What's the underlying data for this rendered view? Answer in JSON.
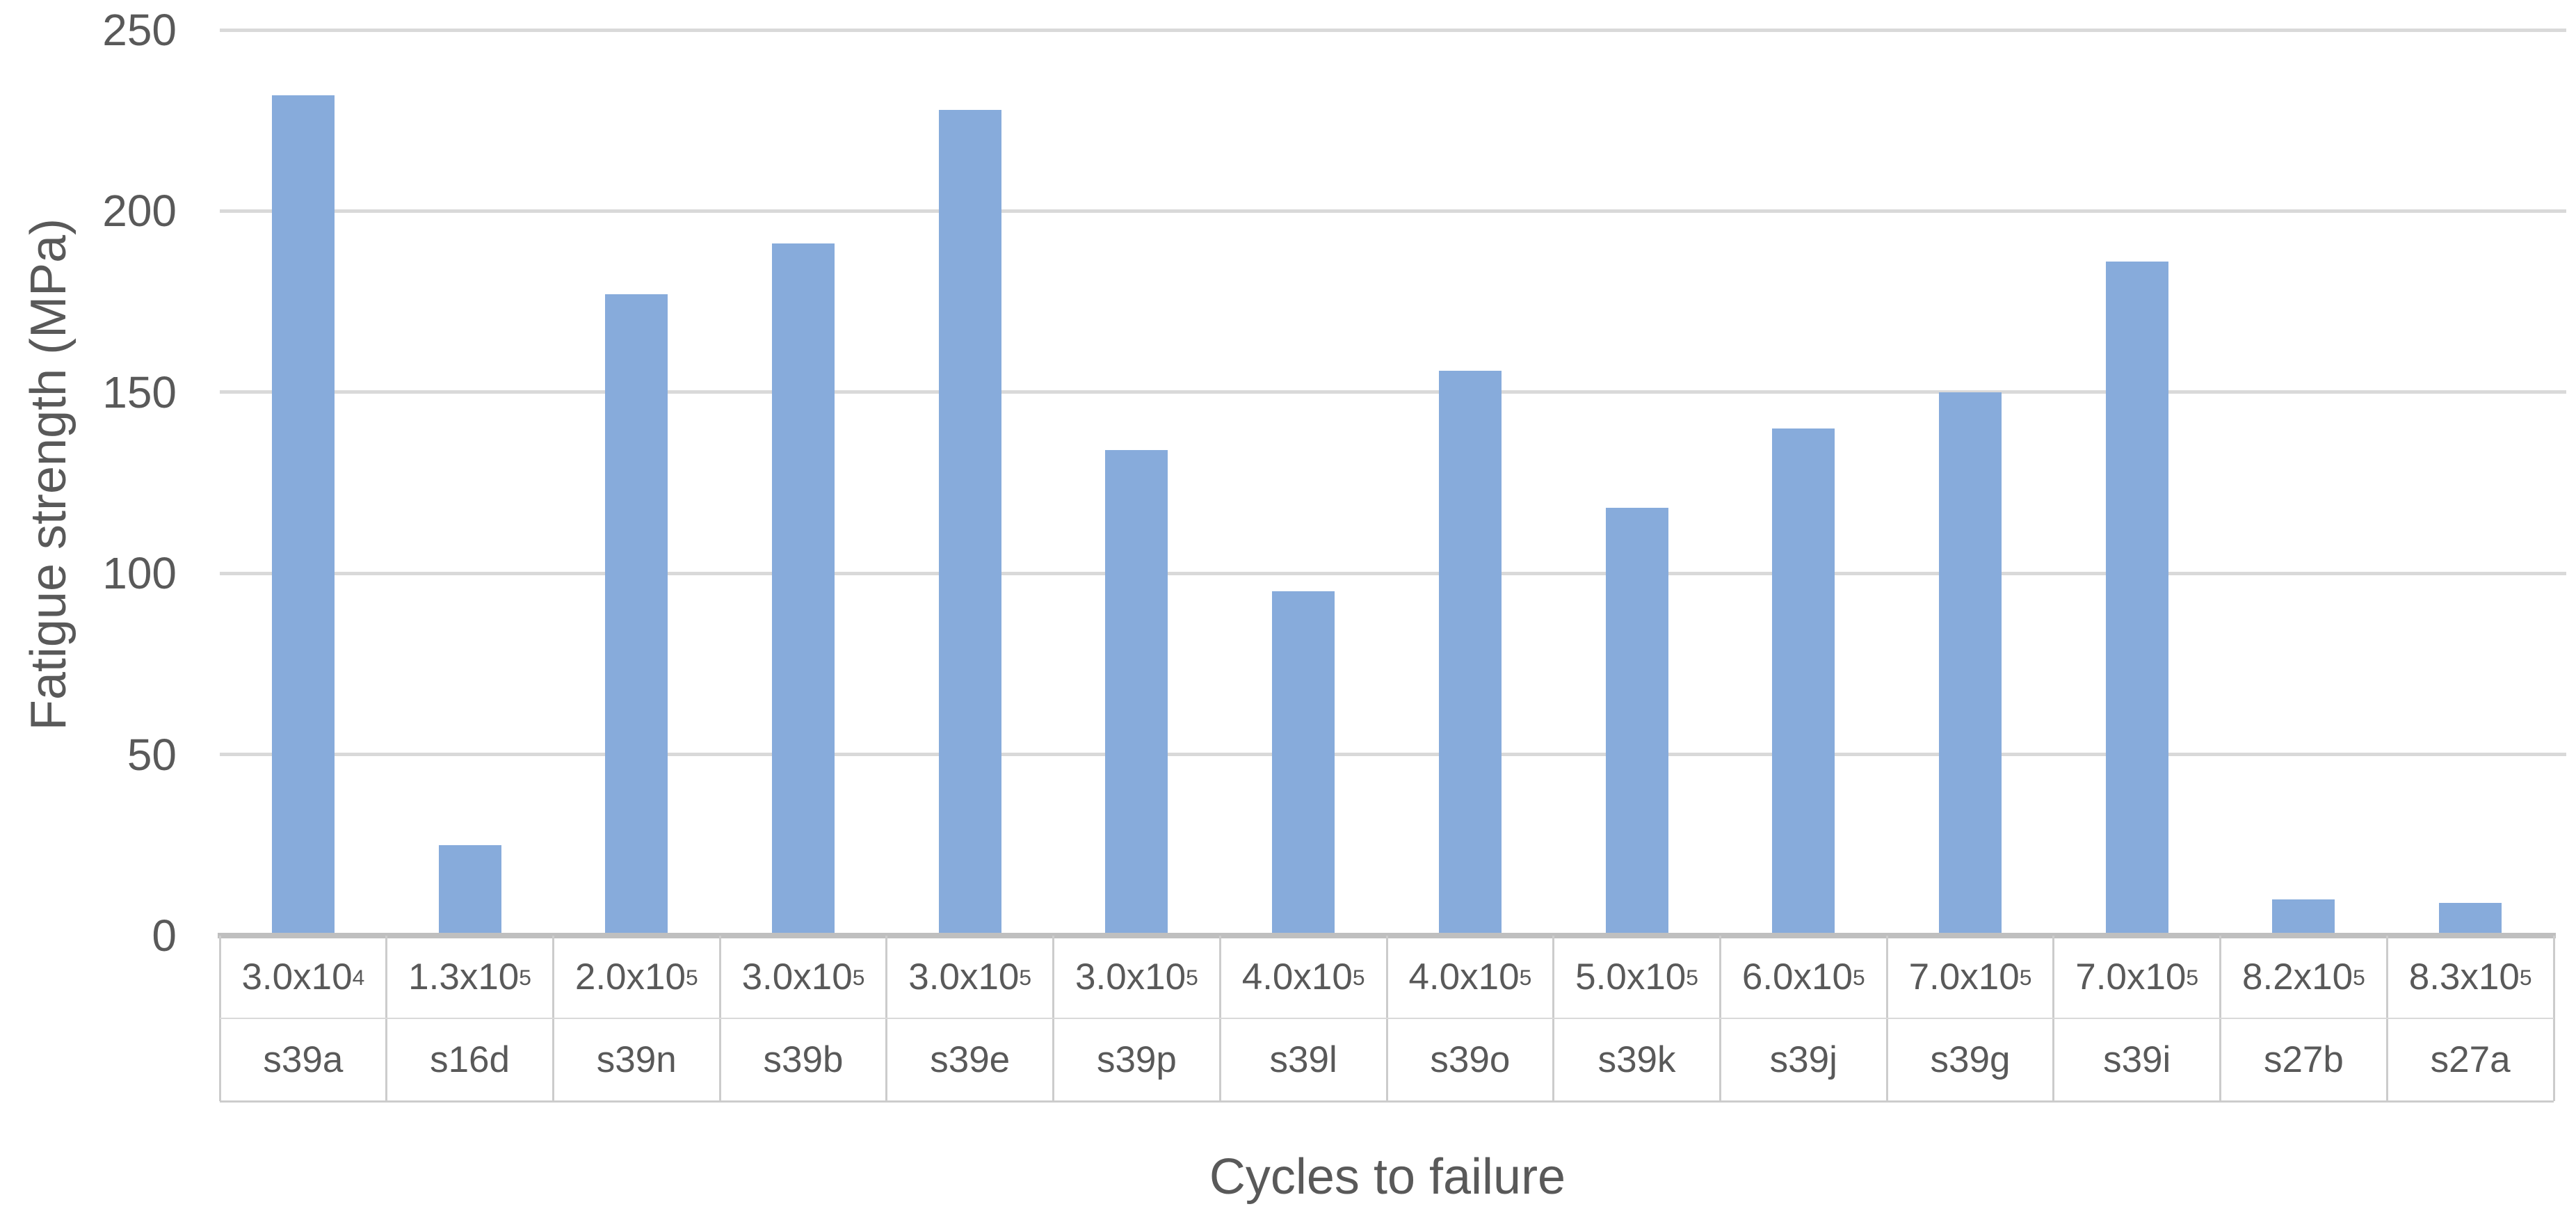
{
  "chart_data": {
    "type": "bar",
    "title": "",
    "xlabel": "Cycles to failure",
    "ylabel": "Fatigue strength (MPa)",
    "ylim": [
      0,
      250
    ],
    "ytick_interval": 50,
    "yticks": [
      "0",
      "50",
      "100",
      "150",
      "200",
      "250"
    ],
    "grid": true,
    "legend": false,
    "categories_cycles": [
      "3.0x10^4",
      "1.3x10^5",
      "2.0x10^5",
      "3.0x10^5",
      "3.0x10^5",
      "3.0x10^5",
      "4.0x10^5",
      "4.0x10^5",
      "5.0x10^5",
      "6.0x10^5",
      "7.0x10^5",
      "7.0x10^5",
      "8.2x10^5",
      "8.3x10^5"
    ],
    "categories_samples": [
      "s39a",
      "s16d",
      "s39n",
      "s39b",
      "s39e",
      "s39p",
      "s39l",
      "s39o",
      "s39k",
      "s39j",
      "s39g",
      "s39i",
      "s27b",
      "s27a"
    ],
    "series": [
      {
        "name": "Fatigue strength (MPa)",
        "values": [
          232,
          25,
          177,
          191,
          228,
          134,
          95,
          156,
          118,
          140,
          150,
          186,
          10,
          9
        ]
      }
    ]
  },
  "colors": {
    "bar": "#87ABDB",
    "gridline": "#D9D9D9",
    "axis_line": "#BFBFBF",
    "table_border": "#CCCCCC",
    "row_separator": "#D9D9D9",
    "text": "#595959",
    "background": "#FFFFFF"
  }
}
